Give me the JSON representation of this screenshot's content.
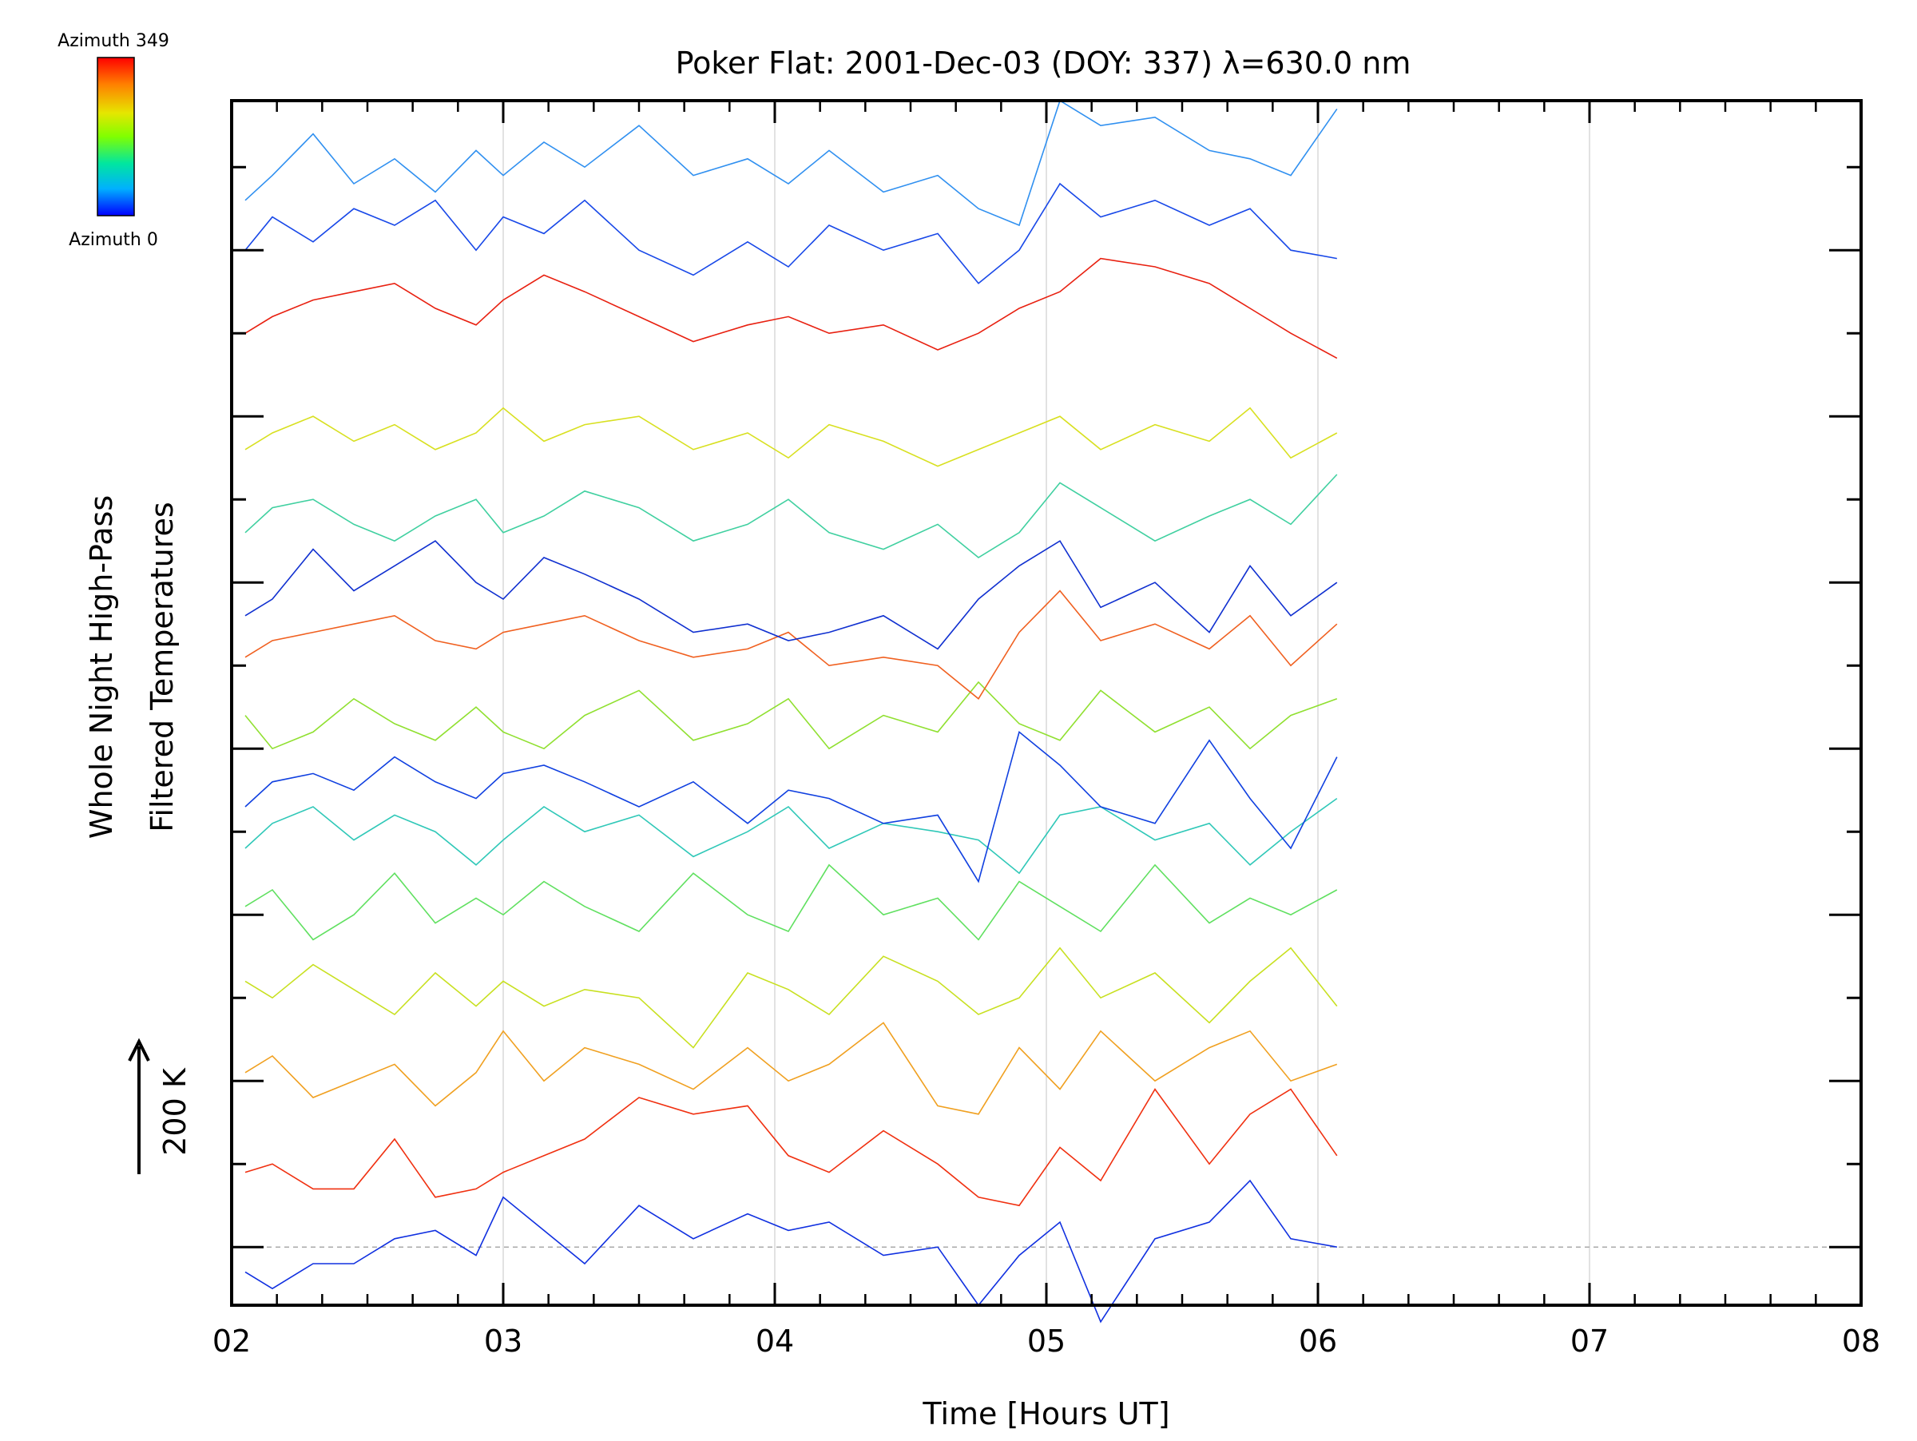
{
  "chart_data": {
    "type": "line",
    "title": "Poker Flat: 2001-Dec-03 (DOY: 337) λ=630.0 nm",
    "xlabel": "Time [Hours UT]",
    "ylabel_line1": "Whole Night High-Pass",
    "ylabel_line2": "Filtered Temperatures",
    "y_scale_label": "200 K",
    "xlim": [
      2,
      8
    ],
    "ylim": [
      -0.7,
      13.8
    ],
    "x_ticks": [
      2,
      3,
      4,
      5,
      6,
      7,
      8
    ],
    "x_tick_labels": [
      "02",
      "03",
      "04",
      "05",
      "06",
      "07",
      "08"
    ],
    "colorbar": {
      "top_label": "Azimuth 349",
      "bottom_label": "Azimuth 0",
      "colors": [
        "#ff0000",
        "#ff8000",
        "#e6e600",
        "#80ff00",
        "#00e6a0",
        "#00b0ff",
        "#0000ff"
      ]
    },
    "grid": "vertical",
    "dashed_baseline_y": 0,
    "series": [
      {
        "azimuth": 0,
        "offset": 0,
        "color": "#1030e0",
        "x": [
          2.05,
          2.15,
          2.3,
          2.45,
          2.6,
          2.75,
          2.9,
          3.0,
          3.15,
          3.3,
          3.5,
          3.7,
          3.9,
          4.05,
          4.2,
          4.4,
          4.6,
          4.75,
          4.9,
          5.05,
          5.2,
          5.4,
          5.6,
          5.75,
          5.9,
          6.07
        ],
        "y": [
          -0.3,
          -0.5,
          -0.2,
          -0.2,
          0.1,
          0.2,
          -0.1,
          0.6,
          0.2,
          -0.2,
          0.5,
          0.1,
          0.4,
          0.2,
          0.3,
          -0.1,
          0.0,
          -0.7,
          -0.1,
          0.3,
          -0.9,
          0.1,
          0.3,
          0.8,
          0.1,
          0.0
        ]
      },
      {
        "azimuth": 20,
        "offset": 1,
        "color": "#f03010",
        "x": [
          2.05,
          2.15,
          2.3,
          2.45,
          2.6,
          2.75,
          2.9,
          3.0,
          3.15,
          3.3,
          3.5,
          3.7,
          3.9,
          4.05,
          4.2,
          4.4,
          4.6,
          4.75,
          4.9,
          5.05,
          5.2,
          5.4,
          5.6,
          5.75,
          5.9,
          6.07
        ],
        "y": [
          0.9,
          1.0,
          0.7,
          0.7,
          1.3,
          0.6,
          0.7,
          0.9,
          1.1,
          1.3,
          1.8,
          1.6,
          1.7,
          1.1,
          0.9,
          1.4,
          1.0,
          0.6,
          0.5,
          1.2,
          0.8,
          1.9,
          1.0,
          1.6,
          1.9,
          1.1
        ]
      },
      {
        "azimuth": 50,
        "offset": 2,
        "color": "#f0a020",
        "x": [
          2.05,
          2.15,
          2.3,
          2.45,
          2.6,
          2.75,
          2.9,
          3.0,
          3.15,
          3.3,
          3.5,
          3.7,
          3.9,
          4.05,
          4.2,
          4.4,
          4.6,
          4.75,
          4.9,
          5.05,
          5.2,
          5.4,
          5.6,
          5.75,
          5.9,
          6.07
        ],
        "y": [
          2.1,
          2.3,
          1.8,
          2.0,
          2.2,
          1.7,
          2.1,
          2.6,
          2.0,
          2.4,
          2.2,
          1.9,
          2.4,
          2.0,
          2.2,
          2.7,
          1.7,
          1.6,
          2.4,
          1.9,
          2.6,
          2.0,
          2.4,
          2.6,
          2.0,
          2.2
        ]
      },
      {
        "azimuth": 90,
        "offset": 3,
        "color": "#c8e020",
        "x": [
          2.05,
          2.15,
          2.3,
          2.45,
          2.6,
          2.75,
          2.9,
          3.0,
          3.15,
          3.3,
          3.5,
          3.7,
          3.9,
          4.05,
          4.2,
          4.4,
          4.6,
          4.75,
          4.9,
          5.05,
          5.2,
          5.4,
          5.6,
          5.75,
          5.9,
          6.07
        ],
        "y": [
          3.2,
          3.0,
          3.4,
          3.1,
          2.8,
          3.3,
          2.9,
          3.2,
          2.9,
          3.1,
          3.0,
          2.4,
          3.3,
          3.1,
          2.8,
          3.5,
          3.2,
          2.8,
          3.0,
          3.6,
          3.0,
          3.3,
          2.7,
          3.2,
          3.6,
          2.9
        ]
      },
      {
        "azimuth": 130,
        "offset": 4,
        "color": "#60e060",
        "x": [
          2.05,
          2.15,
          2.3,
          2.45,
          2.6,
          2.75,
          2.9,
          3.0,
          3.15,
          3.3,
          3.5,
          3.7,
          3.9,
          4.05,
          4.2,
          4.4,
          4.6,
          4.75,
          4.9,
          5.05,
          5.2,
          5.4,
          5.6,
          5.75,
          5.9,
          6.07
        ],
        "y": [
          4.1,
          4.3,
          3.7,
          4.0,
          4.5,
          3.9,
          4.2,
          4.0,
          4.4,
          4.1,
          3.8,
          4.5,
          4.0,
          3.8,
          4.6,
          4.0,
          4.2,
          3.7,
          4.4,
          4.1,
          3.8,
          4.6,
          3.9,
          4.2,
          4.0,
          4.3
        ]
      },
      {
        "azimuth": 170,
        "offset": 5,
        "color": "#30c8b8",
        "x": [
          2.05,
          2.15,
          2.3,
          2.45,
          2.6,
          2.75,
          2.9,
          3.0,
          3.15,
          3.3,
          3.5,
          3.7,
          3.9,
          4.05,
          4.2,
          4.4,
          4.6,
          4.75,
          4.9,
          5.05,
          5.2,
          5.4,
          5.6,
          5.75,
          5.9,
          6.07
        ],
        "y": [
          4.8,
          5.1,
          5.3,
          4.9,
          5.2,
          5.0,
          4.6,
          4.9,
          5.3,
          5.0,
          5.2,
          4.7,
          5.0,
          5.3,
          4.8,
          5.1,
          5.0,
          4.9,
          4.5,
          5.2,
          5.3,
          4.9,
          5.1,
          4.6,
          5.0,
          5.4
        ]
      },
      {
        "azimuth": 200,
        "offset": 5.5,
        "color": "#1040e0",
        "x": [
          2.05,
          2.15,
          2.3,
          2.45,
          2.6,
          2.75,
          2.9,
          3.0,
          3.15,
          3.3,
          3.5,
          3.7,
          3.9,
          4.05,
          4.2,
          4.4,
          4.6,
          4.75,
          4.9,
          5.05,
          5.2,
          5.4,
          5.6,
          5.75,
          5.9,
          6.07
        ],
        "y": [
          5.3,
          5.6,
          5.7,
          5.5,
          5.9,
          5.6,
          5.4,
          5.7,
          5.8,
          5.6,
          5.3,
          5.6,
          5.1,
          5.5,
          5.4,
          5.1,
          5.2,
          4.4,
          6.2,
          5.8,
          5.3,
          5.1,
          6.1,
          5.4,
          4.8,
          5.9
        ]
      },
      {
        "azimuth": 240,
        "offset": 6.2,
        "color": "#90e030",
        "x": [
          2.05,
          2.15,
          2.3,
          2.45,
          2.6,
          2.75,
          2.9,
          3.0,
          3.15,
          3.3,
          3.5,
          3.7,
          3.9,
          4.05,
          4.2,
          4.4,
          4.6,
          4.75,
          4.9,
          5.05,
          5.2,
          5.4,
          5.6,
          5.75,
          5.9,
          6.07
        ],
        "y": [
          6.4,
          6.0,
          6.2,
          6.6,
          6.3,
          6.1,
          6.5,
          6.2,
          6.0,
          6.4,
          6.7,
          6.1,
          6.3,
          6.6,
          6.0,
          6.4,
          6.2,
          6.8,
          6.3,
          6.1,
          6.7,
          6.2,
          6.5,
          6.0,
          6.4,
          6.6
        ]
      },
      {
        "azimuth": 280,
        "offset": 7,
        "color": "#f06020",
        "x": [
          2.05,
          2.15,
          2.3,
          2.45,
          2.6,
          2.75,
          2.9,
          3.0,
          3.15,
          3.3,
          3.5,
          3.7,
          3.9,
          4.05,
          4.2,
          4.4,
          4.6,
          4.75,
          4.9,
          5.05,
          5.2,
          5.4,
          5.6,
          5.75,
          5.9,
          6.07
        ],
        "y": [
          7.1,
          7.3,
          7.4,
          7.5,
          7.6,
          7.3,
          7.2,
          7.4,
          7.5,
          7.6,
          7.3,
          7.1,
          7.2,
          7.4,
          7.0,
          7.1,
          7.0,
          6.6,
          7.4,
          7.9,
          7.3,
          7.5,
          7.2,
          7.6,
          7.0,
          7.5
        ]
      },
      {
        "azimuth": 300,
        "offset": 8,
        "color": "#1030d0",
        "x": [
          2.05,
          2.15,
          2.3,
          2.45,
          2.6,
          2.75,
          2.9,
          3.0,
          3.15,
          3.3,
          3.5,
          3.7,
          3.9,
          4.05,
          4.2,
          4.4,
          4.6,
          4.75,
          4.9,
          5.05,
          5.2,
          5.4,
          5.6,
          5.75,
          5.9,
          6.07
        ],
        "y": [
          7.6,
          7.8,
          8.4,
          7.9,
          8.2,
          8.5,
          8.0,
          7.8,
          8.3,
          8.1,
          7.8,
          7.4,
          7.5,
          7.3,
          7.4,
          7.6,
          7.2,
          7.8,
          8.2,
          8.5,
          7.7,
          8.0,
          7.4,
          8.2,
          7.6,
          8.0
        ]
      },
      {
        "azimuth": 160,
        "offset": 8.6,
        "color": "#40d0a0",
        "x": [
          2.05,
          2.15,
          2.3,
          2.45,
          2.6,
          2.75,
          2.9,
          3.0,
          3.15,
          3.3,
          3.5,
          3.7,
          3.9,
          4.05,
          4.2,
          4.4,
          4.6,
          4.75,
          4.9,
          5.05,
          5.2,
          5.4,
          5.6,
          5.75,
          5.9,
          6.07
        ],
        "y": [
          8.6,
          8.9,
          9.0,
          8.7,
          8.5,
          8.8,
          9.0,
          8.6,
          8.8,
          9.1,
          8.9,
          8.5,
          8.7,
          9.0,
          8.6,
          8.4,
          8.7,
          8.3,
          8.6,
          9.2,
          8.9,
          8.5,
          8.8,
          9.0,
          8.7,
          9.3
        ]
      },
      {
        "azimuth": 100,
        "offset": 9.5,
        "color": "#d8e020",
        "x": [
          2.05,
          2.15,
          2.3,
          2.45,
          2.6,
          2.75,
          2.9,
          3.0,
          3.15,
          3.3,
          3.5,
          3.7,
          3.9,
          4.05,
          4.2,
          4.4,
          4.6,
          4.75,
          4.9,
          5.05,
          5.2,
          5.4,
          5.6,
          5.75,
          5.9,
          6.07
        ],
        "y": [
          9.6,
          9.8,
          10.0,
          9.7,
          9.9,
          9.6,
          9.8,
          10.1,
          9.7,
          9.9,
          10.0,
          9.6,
          9.8,
          9.5,
          9.9,
          9.7,
          9.4,
          9.6,
          9.8,
          10.0,
          9.6,
          9.9,
          9.7,
          10.1,
          9.5,
          9.8
        ]
      },
      {
        "azimuth": 340,
        "offset": 11,
        "color": "#e82010",
        "x": [
          2.05,
          2.15,
          2.3,
          2.45,
          2.6,
          2.75,
          2.9,
          3.0,
          3.15,
          3.3,
          3.5,
          3.7,
          3.9,
          4.05,
          4.2,
          4.4,
          4.6,
          4.75,
          4.9,
          5.05,
          5.2,
          5.4,
          5.6,
          5.75,
          5.9,
          6.07
        ],
        "y": [
          11.0,
          11.2,
          11.4,
          11.5,
          11.6,
          11.3,
          11.1,
          11.4,
          11.7,
          11.5,
          11.2,
          10.9,
          11.1,
          11.2,
          11.0,
          11.1,
          10.8,
          11.0,
          11.3,
          11.5,
          11.9,
          11.8,
          11.6,
          11.3,
          11.0,
          10.7
        ]
      },
      {
        "azimuth": 210,
        "offset": 12,
        "color": "#1848e8",
        "x": [
          2.05,
          2.15,
          2.3,
          2.45,
          2.6,
          2.75,
          2.9,
          3.0,
          3.15,
          3.3,
          3.5,
          3.7,
          3.9,
          4.05,
          4.2,
          4.4,
          4.6,
          4.75,
          4.9,
          5.05,
          5.2,
          5.4,
          5.6,
          5.75,
          5.9,
          6.07
        ],
        "y": [
          12.0,
          12.4,
          12.1,
          12.5,
          12.3,
          12.6,
          12.0,
          12.4,
          12.2,
          12.6,
          12.0,
          11.7,
          12.1,
          11.8,
          12.3,
          12.0,
          12.2,
          11.6,
          12.0,
          12.8,
          12.4,
          12.6,
          12.3,
          12.5,
          12.0,
          11.9
        ]
      },
      {
        "azimuth": 190,
        "offset": 12.8,
        "color": "#3090f0",
        "x": [
          2.05,
          2.15,
          2.3,
          2.45,
          2.6,
          2.75,
          2.9,
          3.0,
          3.15,
          3.3,
          3.5,
          3.7,
          3.9,
          4.05,
          4.2,
          4.4,
          4.6,
          4.75,
          4.9,
          5.05,
          5.2,
          5.4,
          5.6,
          5.75,
          5.9,
          6.07
        ],
        "y": [
          12.6,
          12.9,
          13.4,
          12.8,
          13.1,
          12.7,
          13.2,
          12.9,
          13.3,
          13.0,
          13.5,
          12.9,
          13.1,
          12.8,
          13.2,
          12.7,
          12.9,
          12.5,
          12.3,
          13.8,
          13.5,
          13.6,
          13.2,
          13.1,
          12.9,
          13.7
        ]
      }
    ]
  }
}
